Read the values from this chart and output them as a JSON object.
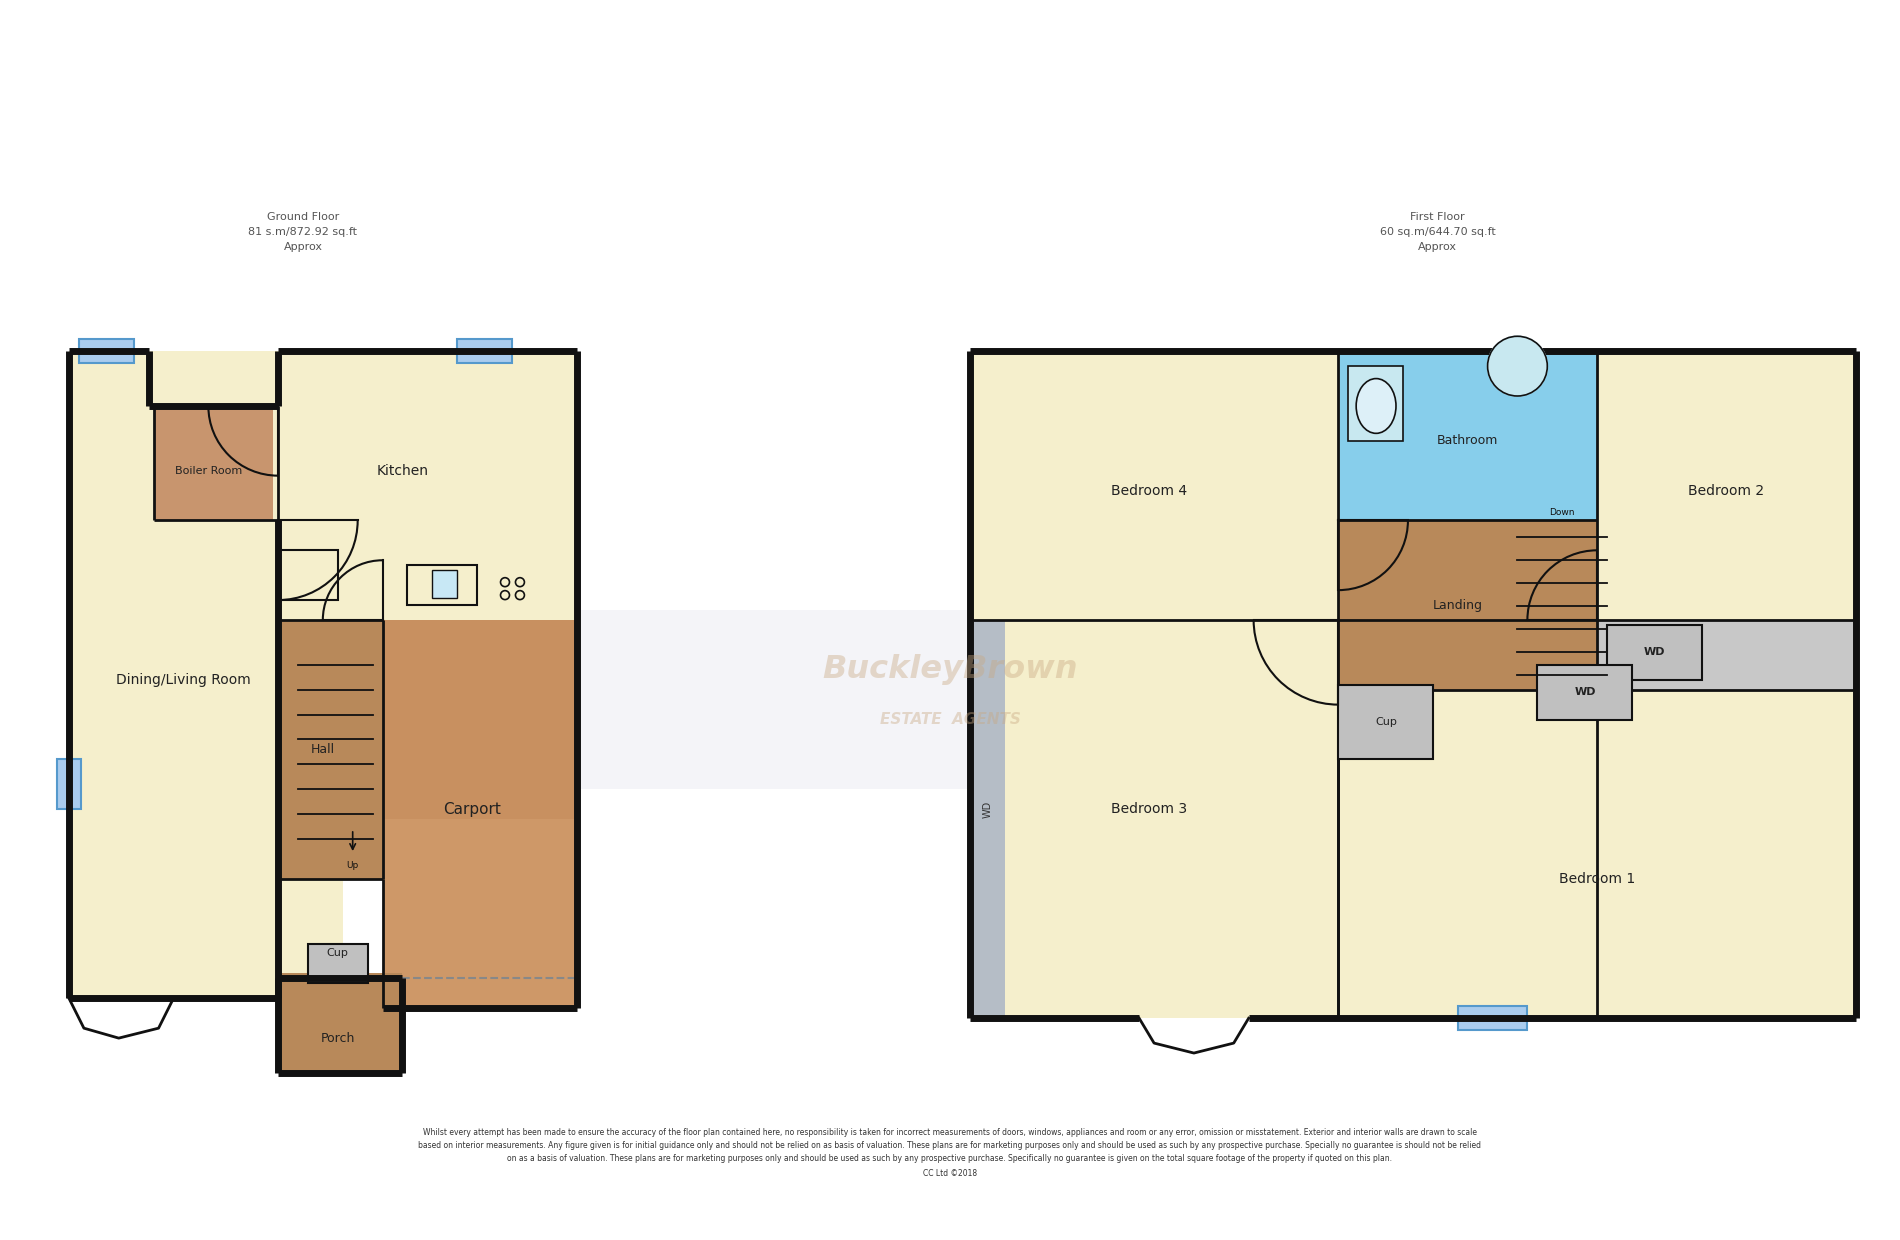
{
  "bg_color": "#ffffff",
  "wall_color": "#111111",
  "room_colors": {
    "living": "#f5efcc",
    "boiler": "#c8956e",
    "hall": "#b8895a",
    "carport": "#c89060",
    "carport2": "#d4a070",
    "porch": "#b8895a",
    "bedroom": "#f5efcc",
    "bathroom": "#87ceeb",
    "landing": "#b8895a",
    "wd_room": "#c8c8c8",
    "wd_box": "#c0c0c0",
    "window_fill": "#aaccee",
    "window_stroke": "#5599cc"
  },
  "ground_floor_label": "Ground Floor\n81 s.m/872.92 sq.ft\nApprox",
  "first_floor_label": "First Floor\n60 sq.m/644.70 sq.ft\nApprox",
  "disclaimer_line1": "Whilst every attempt has been made to ensure the accuracy of the floor plan contained here, no responsibility is taken for incorrect measurements of doors, windows, appliances and room or any error, omission or misstatement. Exterior and interior walls are drawn to scale",
  "disclaimer_line2": "based on interior measurements. Any figure given is for initial guidance only and should not be relied on as basis of valuation. These plans are for marketing purposes only and should be used as such by any prospective purchase. Specially no guarantee is should not be relied",
  "disclaimer_line3": "on as a basis of valuation. These plans are for marketing purposes only and should be used as such by any prospective purchase. Specifically no guarantee is given on the total square footage of the property if quoted on this plan.",
  "disclaimer_line4": "CC Ltd ©2018"
}
